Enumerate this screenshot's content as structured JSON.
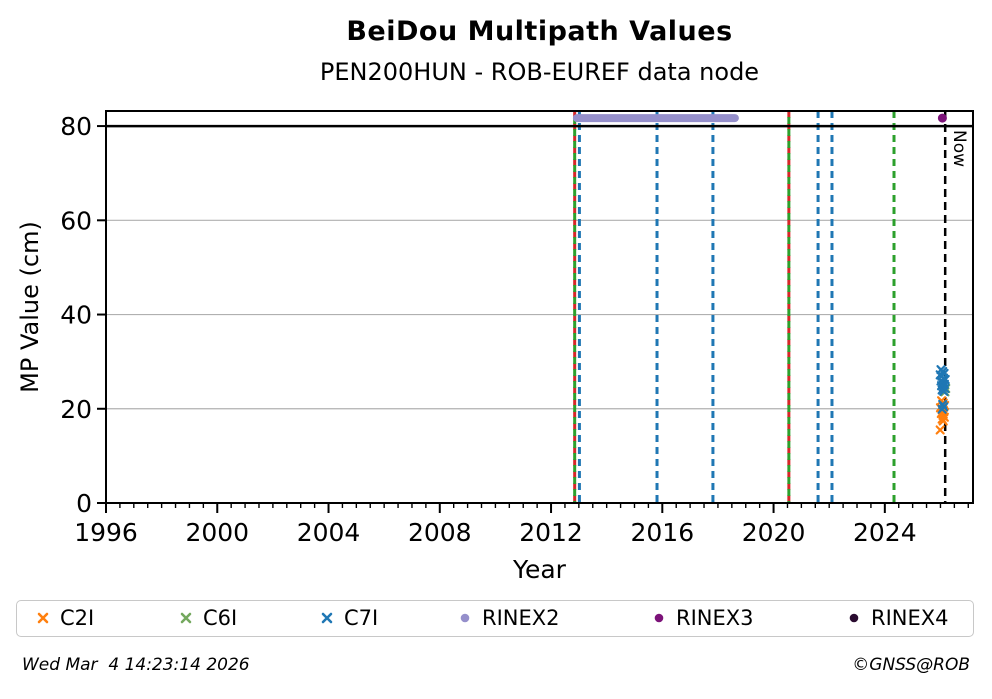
{
  "header": {
    "title": "BeiDou Multipath Values",
    "subtitle": "PEN200HUN - ROB-EUREF data node"
  },
  "footer": {
    "timestamp": "Wed Mar  4 14:23:14 2026",
    "credit": "©GNSS@ROB"
  },
  "colors": {
    "blue": "#1f77b4",
    "green": "#2ca02c",
    "red": "#d62728",
    "black": "#000000",
    "grid": "#b0b0b0",
    "c2i": "#ff7f0e",
    "c6i": "#74a85e",
    "c7i": "#1f77b4",
    "rinex2": "#958fcb",
    "rinex3": "#7c1379",
    "rinex4": "#2a0b30"
  },
  "chart_data": {
    "type": "scatter",
    "title": "BeiDou Multipath Values",
    "subtitle": "PEN200HUN - ROB-EUREF data node",
    "xlabel": "Year",
    "ylabel": "MP Value (cm)",
    "xlim": [
      1996,
      2027.17
    ],
    "ylim": [
      0,
      83.2
    ],
    "x_major_ticks": [
      1996,
      2000,
      2004,
      2008,
      2012,
      2016,
      2020,
      2024
    ],
    "x_minor_step": 0.5,
    "y_ticks": [
      0,
      20,
      40,
      60,
      80
    ],
    "grid_y": [
      20,
      40,
      60
    ],
    "grid_on": true,
    "threshold_line_y": 80,
    "now_line": {
      "x": 2026.17,
      "label": "Now",
      "style": "dashed-black"
    },
    "event_lines": [
      {
        "x": 2012.85,
        "colors": [
          "red",
          "green"
        ]
      },
      {
        "x": 2013.02,
        "colors": [
          "blue"
        ]
      },
      {
        "x": 2015.81,
        "colors": [
          "blue"
        ]
      },
      {
        "x": 2017.82,
        "colors": [
          "blue"
        ]
      },
      {
        "x": 2020.55,
        "colors": [
          "red",
          "green"
        ]
      },
      {
        "x": 2021.6,
        "colors": [
          "blue"
        ]
      },
      {
        "x": 2022.1,
        "colors": [
          "blue"
        ]
      },
      {
        "x": 2024.33,
        "colors": [
          "green"
        ]
      }
    ],
    "rinex_segments": [
      {
        "series": "RINEX2",
        "x_start": 2012.93,
        "x_end": 2018.61,
        "y": 81.7
      }
    ],
    "legend_position": "bottom",
    "series": [
      {
        "name": "C2I",
        "marker": "x",
        "color_key": "c2i",
        "points": [
          [
            2026.04,
            21.7
          ],
          [
            2026.1,
            21.2
          ],
          [
            2026.15,
            20.7
          ],
          [
            2026.0,
            20.2
          ],
          [
            2026.06,
            19.8
          ],
          [
            2026.12,
            19.4
          ],
          [
            2026.03,
            19.0
          ],
          [
            2026.09,
            18.6
          ],
          [
            2026.14,
            18.2
          ],
          [
            2026.06,
            17.8
          ],
          [
            2026.1,
            17.4
          ],
          [
            2025.99,
            15.5
          ]
        ]
      },
      {
        "name": "C6I",
        "marker": "x",
        "color_key": "c6i",
        "points": [
          [
            2026.19,
            24.3
          ],
          [
            2026.16,
            23.6
          ]
        ]
      },
      {
        "name": "C7I",
        "marker": "x",
        "color_key": "c7i",
        "points": [
          [
            2026.02,
            28.3
          ],
          [
            2026.08,
            27.9
          ],
          [
            2026.13,
            27.5
          ],
          [
            2025.99,
            27.2
          ],
          [
            2026.05,
            26.9
          ],
          [
            2026.11,
            26.5
          ],
          [
            2026.17,
            26.2
          ],
          [
            2026.02,
            25.9
          ],
          [
            2026.08,
            25.6
          ],
          [
            2026.14,
            25.2
          ],
          [
            2026.04,
            24.9
          ],
          [
            2026.1,
            24.6
          ],
          [
            2026.16,
            24.3
          ],
          [
            2026.06,
            24.0
          ],
          [
            2026.12,
            23.7
          ],
          [
            2026.08,
            20.9
          ],
          [
            2026.12,
            20.4
          ],
          [
            2026.06,
            19.9
          ]
        ]
      },
      {
        "name": "RINEX2",
        "marker": "circle",
        "color_key": "rinex2",
        "points": []
      },
      {
        "name": "RINEX3",
        "marker": "circle",
        "color_key": "rinex3",
        "points": [
          [
            2026.07,
            81.7
          ]
        ]
      },
      {
        "name": "RINEX4",
        "marker": "circle",
        "color_key": "rinex4",
        "points": []
      }
    ]
  }
}
